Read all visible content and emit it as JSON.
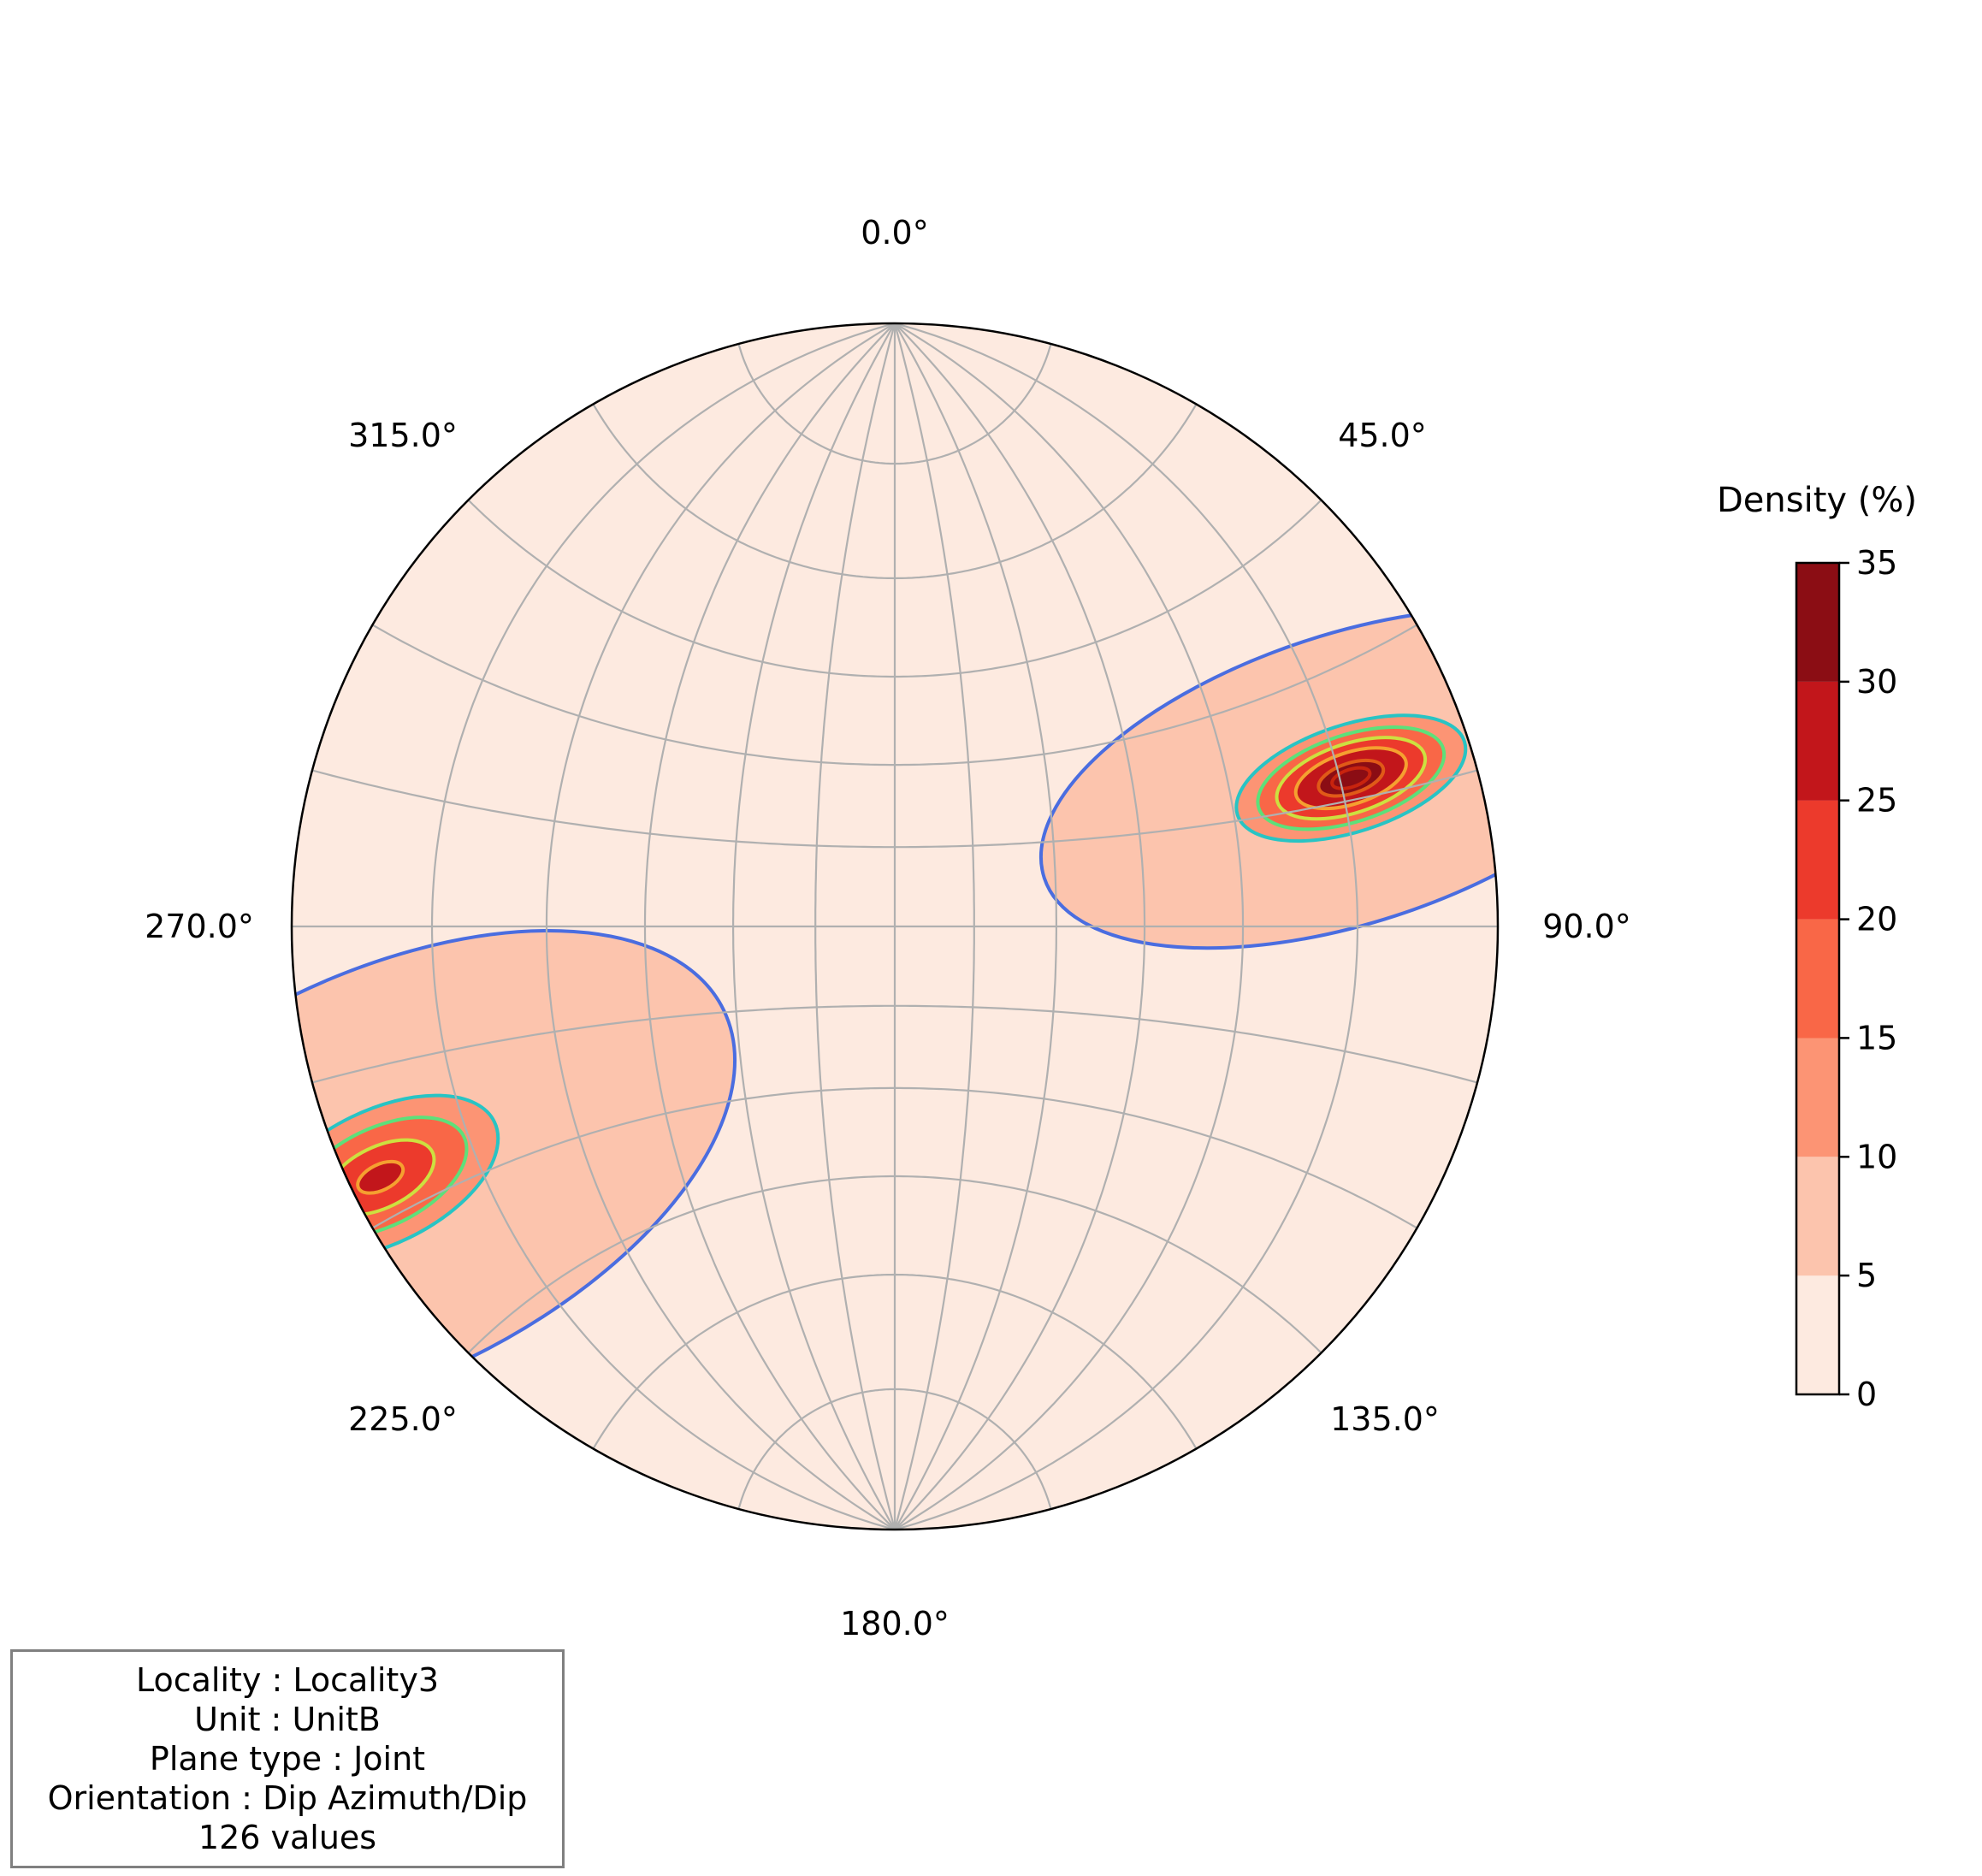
{
  "chart_data": {
    "type": "stereonet-density",
    "projection": "equal-angle",
    "azimuth_labels": [
      "0.0°",
      "45.0°",
      "90.0°",
      "135.0°",
      "180.0°",
      "225.0°",
      "270.0°",
      "315.0°"
    ],
    "azimuth_degrees": [
      0,
      45,
      90,
      135,
      180,
      225,
      270,
      315
    ],
    "grid": true,
    "grid_interval_deg": 15,
    "density_levels": [
      0,
      5,
      10,
      15,
      20,
      25,
      30,
      35
    ],
    "contour_colors": [
      "#fdeae0",
      "#fcc4ad",
      "#fc9474",
      "#f96747",
      "#ec3a2c",
      "#c2161b",
      "#8b0d14"
    ],
    "contour_line_colors": [
      "#4a6de0",
      "#28c4c4",
      "#5de07a",
      "#cde040",
      "#f5a030",
      "#e05a18",
      "#c8240e"
    ],
    "density_clusters": [
      {
        "trend_deg": 72,
        "plunge_deg": 13,
        "peak_density_pct": 33
      },
      {
        "trend_deg": 244,
        "plunge_deg": 3,
        "peak_density_pct": 24
      }
    ],
    "colorbar": {
      "title": "Density (%)",
      "ticks": [
        "0",
        "5",
        "10",
        "15",
        "20",
        "25",
        "30",
        "35"
      ]
    }
  },
  "info": {
    "locality": "Locality : Locality3",
    "unit": "Unit : UnitB",
    "plane_type": "Plane type : Joint",
    "orientation": "Orientation : Dip Azimuth/Dip",
    "count": "126 values"
  }
}
